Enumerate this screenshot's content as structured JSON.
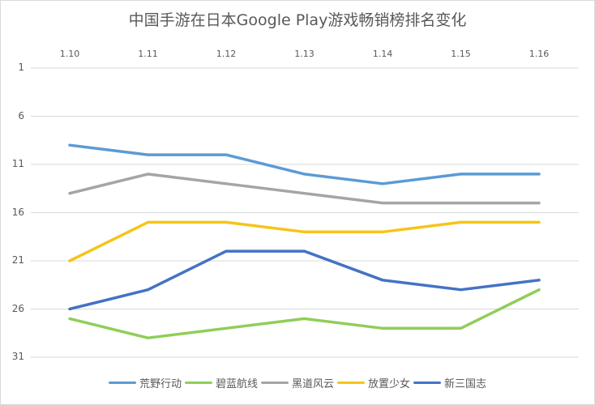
{
  "chart_data": {
    "type": "line",
    "title": "中国手游在日本Google Play游戏畅销榜排名变化",
    "xlabel": "",
    "ylabel": "",
    "x": [
      "1.10",
      "1.11",
      "1.12",
      "1.13",
      "1.14",
      "1.15",
      "1.16"
    ],
    "yticks": [
      "1",
      "6",
      "11",
      "16",
      "21",
      "26",
      "31"
    ],
    "ylim": [
      1,
      31
    ],
    "y_inverted": true,
    "x_axis_position": "top",
    "grid": true,
    "legend_position": "bottom",
    "series": [
      {
        "name": "荒野行动",
        "color": "#5b9bd5",
        "values": [
          9,
          10,
          10,
          12,
          13,
          12,
          12
        ]
      },
      {
        "name": "碧蓝航线",
        "color": "#8fce5a",
        "values": [
          27,
          29,
          28,
          27,
          28,
          28,
          24
        ]
      },
      {
        "name": "黑道风云",
        "color": "#a5a5a5",
        "values": [
          14,
          12,
          13,
          14,
          15,
          15,
          15
        ]
      },
      {
        "name": "放置少女",
        "color": "#f5c518",
        "values": [
          21,
          17,
          17,
          18,
          18,
          17,
          17
        ]
      },
      {
        "name": "新三国志",
        "color": "#4472c4",
        "values": [
          26,
          24,
          20,
          20,
          23,
          24,
          23
        ]
      }
    ]
  }
}
